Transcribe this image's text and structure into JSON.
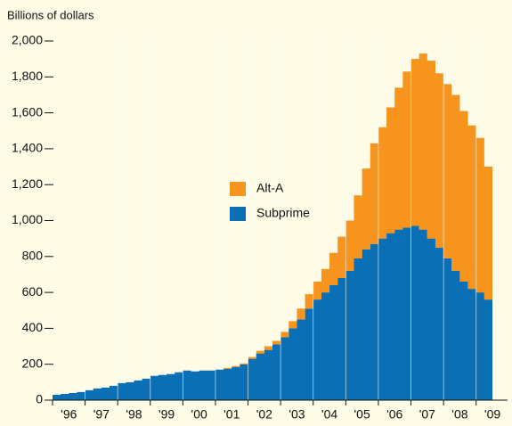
{
  "chart_data": {
    "type": "area",
    "stacked": true,
    "y_axis_label": "Billions of dollars",
    "x": [
      1996,
      1996.25,
      1996.5,
      1996.75,
      1997,
      1997.25,
      1997.5,
      1997.75,
      1998,
      1998.25,
      1998.5,
      1998.75,
      1999,
      1999.25,
      1999.5,
      1999.75,
      2000,
      2000.25,
      2000.5,
      2000.75,
      2001,
      2001.25,
      2001.5,
      2001.75,
      2002,
      2002.25,
      2002.5,
      2002.75,
      2003,
      2003.25,
      2003.5,
      2003.75,
      2004,
      2004.25,
      2004.5,
      2004.75,
      2005,
      2005.25,
      2005.5,
      2005.75,
      2006,
      2006.25,
      2006.5,
      2006.75,
      2007,
      2007.25,
      2007.5,
      2007.75,
      2008,
      2008.25,
      2008.5,
      2008.75,
      2009,
      2009.25
    ],
    "series": [
      {
        "name": "Subprime",
        "color": "#0a6fb5",
        "values": [
          30,
          35,
          40,
          45,
          55,
          65,
          70,
          80,
          95,
          100,
          110,
          120,
          135,
          140,
          145,
          155,
          165,
          160,
          165,
          165,
          170,
          175,
          185,
          200,
          230,
          260,
          280,
          310,
          350,
          400,
          450,
          510,
          560,
          600,
          640,
          680,
          720,
          790,
          840,
          870,
          900,
          930,
          950,
          960,
          970,
          950,
          900,
          850,
          790,
          720,
          660,
          620,
          600,
          560
        ]
      },
      {
        "name": "Alt-A",
        "color": "#f7941d",
        "values": [
          0,
          0,
          0,
          0,
          0,
          0,
          0,
          0,
          0,
          0,
          0,
          0,
          0,
          0,
          0,
          0,
          0,
          0,
          0,
          0,
          0,
          5,
          5,
          5,
          10,
          15,
          20,
          20,
          30,
          40,
          60,
          80,
          100,
          130,
          180,
          230,
          280,
          350,
          450,
          560,
          620,
          700,
          790,
          870,
          930,
          980,
          990,
          970,
          970,
          980,
          950,
          910,
          860,
          740
        ]
      }
    ],
    "xlim": [
      1995.7,
      2009.8
    ],
    "xticks": [
      {
        "value": 1996,
        "label": "'96"
      },
      {
        "value": 1997,
        "label": "'97"
      },
      {
        "value": 1998,
        "label": "'98"
      },
      {
        "value": 1999,
        "label": "'99"
      },
      {
        "value": 2000,
        "label": "'00"
      },
      {
        "value": 2001,
        "label": "'01"
      },
      {
        "value": 2002,
        "label": "'02"
      },
      {
        "value": 2003,
        "label": "'03"
      },
      {
        "value": 2004,
        "label": "'04"
      },
      {
        "value": 2005,
        "label": "'05"
      },
      {
        "value": 2006,
        "label": "'06"
      },
      {
        "value": 2007,
        "label": "'07"
      },
      {
        "value": 2008,
        "label": "'08"
      },
      {
        "value": 2009,
        "label": "'09"
      }
    ],
    "ylim": [
      0,
      2000
    ],
    "yticks": [
      0,
      {
        "value": 200,
        "label": "200"
      },
      {
        "value": 400,
        "label": "400"
      },
      {
        "value": 600,
        "label": "600"
      },
      {
        "value": 800,
        "label": "800"
      },
      {
        "value": 1000,
        "label": "1,000"
      },
      {
        "value": 1200,
        "label": "1,200"
      },
      {
        "value": 1400,
        "label": "1,400"
      },
      {
        "value": 1600,
        "label": "1,600"
      },
      {
        "value": 1800,
        "label": "1,800"
      },
      {
        "value": 2000,
        "label": "2,000"
      }
    ]
  }
}
